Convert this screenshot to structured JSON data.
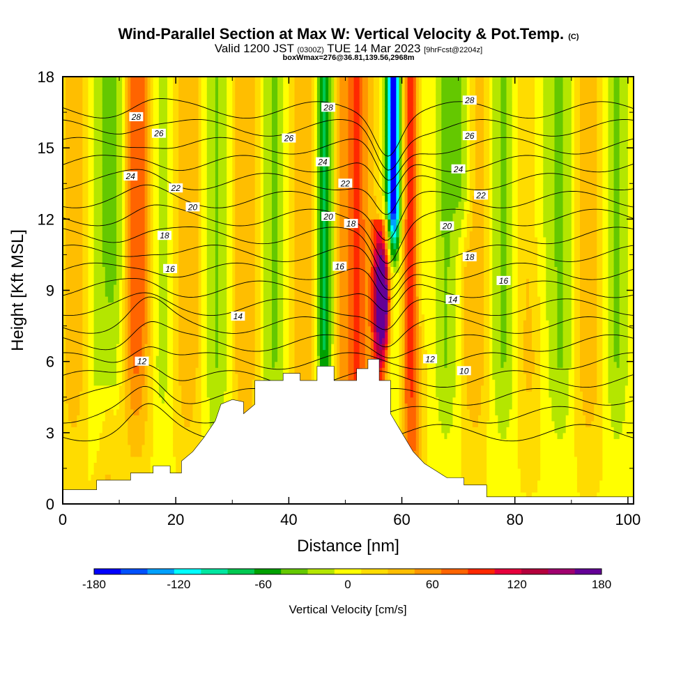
{
  "header": {
    "title_main": "Wind-Parallel Section at Max W: Vertical Velocity & Pot.Temp.",
    "title_mark": "(C)",
    "valid_prefix": "Valid 1200 JST",
    "valid_utc": "(0300Z)",
    "valid_date": "TUE 14 Mar 2023",
    "valid_fcst": "[9hrFcst@2204z]",
    "box_info": "boxWmax=276@36.81,139.56,2968m"
  },
  "chart_data": {
    "type": "heatmap",
    "xlabel": "Distance [nm]",
    "ylabel": "Height [Kft MSL]",
    "xlim": [
      0,
      101
    ],
    "ylim": [
      0,
      18
    ],
    "x_ticks": [
      "0",
      "20",
      "40",
      "60",
      "80",
      "100"
    ],
    "y_ticks": [
      "0",
      "3",
      "6",
      "9",
      "12",
      "15",
      "18"
    ],
    "x_tick_values": [
      0,
      20,
      40,
      60,
      80,
      100
    ],
    "y_tick_values": [
      0,
      3,
      6,
      9,
      12,
      15,
      18
    ],
    "colorbar": {
      "label": "Vertical Velocity [cm/s]",
      "tick_labels": [
        "-180",
        "-120",
        "-60",
        "0",
        "60",
        "120",
        "180"
      ],
      "range": [
        -180,
        180
      ],
      "colors": [
        "#0000ff",
        "#0050ff",
        "#00a0ff",
        "#00ffff",
        "#00e6a0",
        "#00c850",
        "#00a000",
        "#64c800",
        "#b4e600",
        "#ffff00",
        "#ffdc00",
        "#ffbe00",
        "#ff9600",
        "#ff6400",
        "#ff2800",
        "#e6003c",
        "#b4003c",
        "#a0006e",
        "#640096"
      ]
    },
    "wind_velocity_features": [
      {
        "x": 56.5,
        "y_bottom": 6.5,
        "y_top": 11,
        "w_max": 180,
        "note": "strong updraft"
      },
      {
        "x": 58.5,
        "y_bottom": 10,
        "y_top": 18,
        "w_min": -150,
        "note": "strong downdraft"
      },
      {
        "x": 14,
        "y_bottom": 9,
        "y_top": 18,
        "w_max": 60
      },
      {
        "x": 49,
        "y_bottom": 5.2,
        "y_top": 18,
        "w_max": 70
      },
      {
        "x": 46,
        "y_bottom": 6,
        "y_top": 18,
        "w_min": -50
      }
    ],
    "terrain": [
      [
        0,
        0.6
      ],
      [
        6,
        0.6
      ],
      [
        6,
        1.0
      ],
      [
        12,
        1.0
      ],
      [
        12,
        1.3
      ],
      [
        16,
        1.3
      ],
      [
        16,
        1.6
      ],
      [
        19,
        1.6
      ],
      [
        19,
        1.3
      ],
      [
        21,
        1.3
      ],
      [
        21,
        1.8
      ],
      [
        23,
        2.2
      ],
      [
        25,
        2.8
      ],
      [
        27,
        3.5
      ],
      [
        28,
        4.2
      ],
      [
        30,
        4.4
      ],
      [
        32,
        4.3
      ],
      [
        32,
        3.8
      ],
      [
        34,
        4.2
      ],
      [
        34,
        5.2
      ],
      [
        39,
        5.2
      ],
      [
        39,
        5.5
      ],
      [
        42,
        5.5
      ],
      [
        42,
        5.2
      ],
      [
        45,
        5.2
      ],
      [
        45,
        5.8
      ],
      [
        48,
        5.8
      ],
      [
        48,
        5.2
      ],
      [
        52,
        5.2
      ],
      [
        52,
        5.7
      ],
      [
        54,
        5.7
      ],
      [
        54,
        6.1
      ],
      [
        56,
        6.1
      ],
      [
        56,
        5.2
      ],
      [
        58,
        5.2
      ],
      [
        58,
        3.8
      ],
      [
        60,
        3.0
      ],
      [
        62,
        2.2
      ],
      [
        64,
        1.7
      ],
      [
        66,
        1.4
      ],
      [
        68,
        1.1
      ],
      [
        71,
        1.1
      ],
      [
        71,
        0.8
      ],
      [
        75,
        0.8
      ],
      [
        75,
        0.3
      ],
      [
        101,
        0.3
      ],
      [
        101,
        0
      ],
      [
        0,
        0
      ]
    ],
    "isentropes": [
      {
        "label": "10",
        "y_left": 3.0,
        "x_label": 71,
        "y_label": 5.6
      },
      {
        "label": "12",
        "y_left": 5.5,
        "x_label": 14,
        "y_label": 6.0
      },
      {
        "label": "12",
        "y_left": 5.5,
        "x_label": 65,
        "y_label": 6.1
      },
      {
        "label": "14",
        "y_left": 7.0,
        "x_label": 31,
        "y_label": 7.9
      },
      {
        "label": "14",
        "y_left": 7.0,
        "x_label": 69,
        "y_label": 8.6
      },
      {
        "label": "16",
        "y_left": 8.8,
        "x_label": 19,
        "y_label": 9.9
      },
      {
        "label": "16",
        "y_left": 8.8,
        "x_label": 49,
        "y_label": 10.0
      },
      {
        "label": "16",
        "y_left": 8.8,
        "x_label": 78,
        "y_label": 9.4
      },
      {
        "label": "18",
        "y_left": 10.6,
        "x_label": 18,
        "y_label": 11.3
      },
      {
        "label": "18",
        "y_left": 10.6,
        "x_label": 51,
        "y_label": 11.8
      },
      {
        "label": "18",
        "y_left": 10.6,
        "x_label": 72,
        "y_label": 10.4
      },
      {
        "label": "20",
        "y_left": 11.8,
        "x_label": 23,
        "y_label": 12.5
      },
      {
        "label": "20",
        "y_left": 11.8,
        "x_label": 47,
        "y_label": 12.1
      },
      {
        "label": "20",
        "y_left": 11.8,
        "x_label": 68,
        "y_label": 11.7
      },
      {
        "label": "22",
        "y_left": 12.8,
        "x_label": 20,
        "y_label": 13.3
      },
      {
        "label": "22",
        "y_left": 12.8,
        "x_label": 50,
        "y_label": 13.5
      },
      {
        "label": "22",
        "y_left": 12.8,
        "x_label": 74,
        "y_label": 13.0
      },
      {
        "label": "24",
        "y_left": 13.9,
        "x_label": 12,
        "y_label": 13.8
      },
      {
        "label": "24",
        "y_left": 13.9,
        "x_label": 46,
        "y_label": 14.4
      },
      {
        "label": "24",
        "y_left": 13.9,
        "x_label": 70,
        "y_label": 14.1
      },
      {
        "label": "26",
        "y_left": 15.3,
        "x_label": 17,
        "y_label": 15.6
      },
      {
        "label": "26",
        "y_left": 15.3,
        "x_label": 40,
        "y_label": 15.4
      },
      {
        "label": "26",
        "y_left": 15.3,
        "x_label": 72,
        "y_label": 15.5
      },
      {
        "label": "28",
        "y_left": 16.6,
        "x_label": 13,
        "y_label": 16.3
      },
      {
        "label": "28",
        "y_left": 16.6,
        "x_label": 47,
        "y_label": 16.7
      },
      {
        "label": "28",
        "y_left": 16.6,
        "x_label": 72,
        "y_label": 17.0
      }
    ]
  }
}
